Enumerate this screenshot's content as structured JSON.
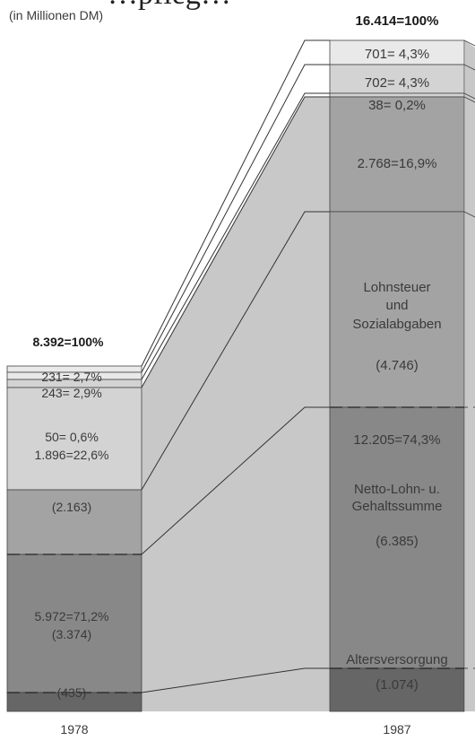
{
  "chart_data": {
    "type": "stacked-bar",
    "title_fragment": "…pfleg…",
    "unit_note": "(in Millionen DM)",
    "colors": {
      "top_light": "#e9e9e9",
      "light": "#d3d3d3",
      "band": "#c8c8c8",
      "mid": "#a3a3a3",
      "dark": "#888888",
      "darkest": "#666666"
    },
    "bars": [
      {
        "year": "1978",
        "total_label": "8.392=100%",
        "total": 8392,
        "segments": [
          {
            "label": "231= 2,7%",
            "value": 231,
            "percent": 2.7
          },
          {
            "label": "243= 2,9%",
            "value": 243,
            "percent": 2.9
          },
          {
            "label": "50= 0,6%",
            "value": 50,
            "percent": 0.6
          },
          {
            "label": "1.896=22,6%",
            "value": 1896,
            "percent": 22.6,
            "sub": "(2.163)",
            "sub_value": 2163
          },
          {
            "label": "5.972=71,2%",
            "value": 5972,
            "percent": 71.2,
            "sub": "(3.374)",
            "sub_value": 3374
          },
          {
            "label": "(435)",
            "value": 435
          }
        ]
      },
      {
        "year": "1987",
        "total_label": "16.414=100%",
        "total": 16414,
        "segments": [
          {
            "label": "701= 4,3%",
            "value": 701,
            "percent": 4.3
          },
          {
            "label": "702= 4,3%",
            "value": 702,
            "percent": 4.3
          },
          {
            "label": "38= 0,2%",
            "value": 38,
            "percent": 0.2
          },
          {
            "label": "2.768=16,9%",
            "value": 2768,
            "percent": 16.9
          },
          {
            "label": "Lohnsteuer und Sozialabgaben",
            "lines": [
              "Lohnsteuer",
              "und",
              "Sozialabgaben"
            ],
            "value": 4746,
            "sub": "(4.746)"
          },
          {
            "label": "12.205=74,3%",
            "value": 12205,
            "percent": 74.3
          },
          {
            "label": "Netto-Lohn- u. Gehaltssumme",
            "lines": [
              "Netto-Lohn- u.",
              "Gehaltssumme"
            ],
            "value": 6385,
            "sub": "(6.385)"
          },
          {
            "label": "Altersversorgung",
            "value": 1074,
            "sub": "(1.074)"
          }
        ]
      }
    ]
  }
}
